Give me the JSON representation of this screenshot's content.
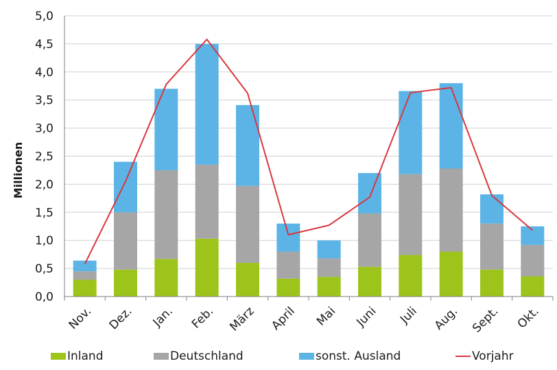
{
  "chart_data": {
    "type": "bar",
    "stacked": true,
    "title": "",
    "xlabel": "",
    "ylabel": "Millionen",
    "ylim": [
      0,
      5
    ],
    "yticks": [
      "0,0",
      "0,5",
      "1,0",
      "1,5",
      "2,0",
      "2,5",
      "3,0",
      "3,5",
      "4,0",
      "4,5",
      "5,0"
    ],
    "grid": true,
    "legend_position": "bottom",
    "categories": [
      "Nov.",
      "Dez.",
      "Jan.",
      "Feb.",
      "März",
      "April",
      "Mai",
      "Juni",
      "Juli",
      "Aug.",
      "Sept.",
      "Okt."
    ],
    "series": [
      {
        "name": "Inland",
        "type": "bar",
        "color": "#9dc41a",
        "values": [
          0.3,
          0.48,
          0.67,
          1.03,
          0.6,
          0.32,
          0.35,
          0.53,
          0.74,
          0.8,
          0.48,
          0.36
        ]
      },
      {
        "name": "Deutschland",
        "type": "bar",
        "color": "#a6a6a6",
        "values": [
          0.15,
          1.02,
          1.58,
          1.32,
          1.37,
          0.48,
          0.33,
          0.95,
          1.44,
          1.48,
          0.82,
          0.56
        ]
      },
      {
        "name": "sonst. Ausland",
        "type": "bar",
        "color": "#5bb4e5",
        "values": [
          0.19,
          0.9,
          1.45,
          2.15,
          1.44,
          0.5,
          0.32,
          0.72,
          1.48,
          1.52,
          0.52,
          0.33
        ]
      },
      {
        "name": "Vorjahr",
        "type": "line",
        "color": "#d9363e",
        "values": [
          0.58,
          2.05,
          3.78,
          4.58,
          3.62,
          1.1,
          1.27,
          1.77,
          3.63,
          3.72,
          1.8,
          1.18
        ]
      }
    ]
  }
}
